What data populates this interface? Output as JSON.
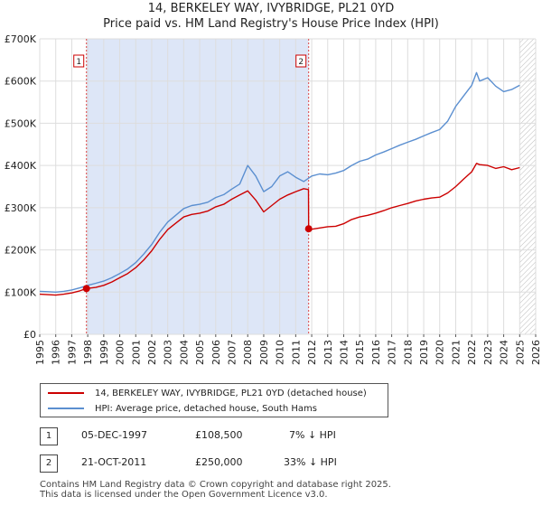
{
  "title_line1": "14, BERKELEY WAY, IVYBRIDGE, PL21 0YD",
  "title_line2": "Price paid vs. HM Land Registry's House Price Index (HPI)",
  "chart_data": {
    "type": "line",
    "title": "14, BERKELEY WAY, IVYBRIDGE, PL21 0YD — Price paid vs. HM Land Registry's House Price Index (HPI)",
    "xlim": [
      1995,
      2026
    ],
    "ylim": [
      0,
      700000
    ],
    "y_ticks": [
      0,
      100000,
      200000,
      300000,
      400000,
      500000,
      600000,
      700000
    ],
    "y_tick_labels": [
      "£0",
      "£100K",
      "£200K",
      "£300K",
      "£400K",
      "£500K",
      "£600K",
      "£700K"
    ],
    "x_ticks": [
      1995,
      1996,
      1997,
      1998,
      1999,
      2000,
      2001,
      2002,
      2003,
      2004,
      2005,
      2006,
      2007,
      2008,
      2009,
      2010,
      2011,
      2012,
      2013,
      2014,
      2015,
      2016,
      2017,
      2018,
      2019,
      2020,
      2021,
      2022,
      2023,
      2024,
      2025,
      2026
    ],
    "grid": true,
    "future_hatch_from": 2025.0,
    "series": [
      {
        "name": "14, BERKELEY WAY, IVYBRIDGE, PL21 0YD (detached house)",
        "color": "#cc0000",
        "x": [
          1995.0,
          1995.5,
          1996.0,
          1996.5,
          1997.0,
          1997.5,
          1997.92,
          1998.5,
          1999.0,
          1999.5,
          2000.0,
          2000.5,
          2001.0,
          2001.5,
          2002.0,
          2002.5,
          2003.0,
          2003.5,
          2004.0,
          2004.5,
          2005.0,
          2005.5,
          2006.0,
          2006.5,
          2007.0,
          2007.5,
          2008.0,
          2008.5,
          2009.0,
          2009.5,
          2010.0,
          2010.5,
          2011.0,
          2011.5,
          2011.8,
          2011.81,
          2012.0,
          2012.5,
          2013.0,
          2013.5,
          2014.0,
          2014.5,
          2015.0,
          2015.5,
          2016.0,
          2016.5,
          2017.0,
          2017.5,
          2018.0,
          2018.5,
          2019.0,
          2019.5,
          2020.0,
          2020.5,
          2021.0,
          2021.5,
          2022.0,
          2022.3,
          2022.5,
          2023.0,
          2023.5,
          2024.0,
          2024.5,
          2025.0
        ],
        "values": [
          95000,
          94000,
          93000,
          95000,
          98000,
          103000,
          108500,
          111000,
          116000,
          124000,
          134000,
          144000,
          158000,
          176000,
          198000,
          225000,
          248000,
          263000,
          278000,
          284000,
          287000,
          292000,
          302000,
          308000,
          320000,
          330000,
          340000,
          318000,
          290000,
          305000,
          320000,
          330000,
          338000,
          345000,
          343000,
          250000,
          249000,
          252000,
          255000,
          256000,
          262000,
          272000,
          278000,
          282000,
          287000,
          293000,
          300000,
          305000,
          310000,
          316000,
          320000,
          323000,
          325000,
          335000,
          350000,
          368000,
          385000,
          405000,
          402000,
          400000,
          393000,
          397000,
          390000,
          395000
        ]
      },
      {
        "name": "HPI: Average price, detached house, South Hams",
        "color": "#5b8fd0",
        "x": [
          1995.0,
          1995.5,
          1996.0,
          1996.5,
          1997.0,
          1997.5,
          1998.0,
          1998.5,
          1999.0,
          1999.5,
          2000.0,
          2000.5,
          2001.0,
          2001.5,
          2002.0,
          2002.5,
          2003.0,
          2003.5,
          2004.0,
          2004.5,
          2005.0,
          2005.5,
          2006.0,
          2006.5,
          2007.0,
          2007.5,
          2008.0,
          2008.5,
          2009.0,
          2009.5,
          2010.0,
          2010.5,
          2011.0,
          2011.5,
          2012.0,
          2012.5,
          2013.0,
          2013.5,
          2014.0,
          2014.5,
          2015.0,
          2015.5,
          2016.0,
          2016.5,
          2017.0,
          2017.5,
          2018.0,
          2018.5,
          2019.0,
          2019.5,
          2020.0,
          2020.5,
          2021.0,
          2021.5,
          2022.0,
          2022.3,
          2022.5,
          2023.0,
          2023.5,
          2024.0,
          2024.5,
          2025.0
        ],
        "values": [
          102000,
          101000,
          100000,
          102000,
          105000,
          110000,
          116000,
          121000,
          126000,
          134000,
          144000,
          155000,
          170000,
          190000,
          213000,
          242000,
          266000,
          282000,
          298000,
          305000,
          308000,
          313000,
          324000,
          331000,
          344000,
          356000,
          400000,
          375000,
          338000,
          350000,
          375000,
          385000,
          372000,
          362000,
          375000,
          380000,
          378000,
          382000,
          388000,
          400000,
          410000,
          415000,
          425000,
          432000,
          440000,
          448000,
          455000,
          462000,
          470000,
          478000,
          485000,
          505000,
          540000,
          565000,
          590000,
          620000,
          600000,
          608000,
          588000,
          575000,
          580000,
          590000
        ]
      }
    ],
    "transactions": [
      {
        "label": "1",
        "x": 1997.92,
        "price": 108500
      },
      {
        "label": "2",
        "x": 2011.81,
        "price": 250000
      }
    ]
  },
  "legend": {
    "item1": "14, BERKELEY WAY, IVYBRIDGE, PL21 0YD (detached house)",
    "item2": "HPI: Average price, detached house, South Hams"
  },
  "transactions_table": [
    {
      "num": "1",
      "date": "05-DEC-1997",
      "price": "£108,500",
      "diff": "7% ↓ HPI"
    },
    {
      "num": "2",
      "date": "21-OCT-2011",
      "price": "£250,000",
      "diff": "33% ↓ HPI"
    }
  ],
  "footer_line1": "Contains HM Land Registry data © Crown copyright and database right 2025.",
  "footer_line2": "This data is licensed under the Open Government Licence v3.0."
}
